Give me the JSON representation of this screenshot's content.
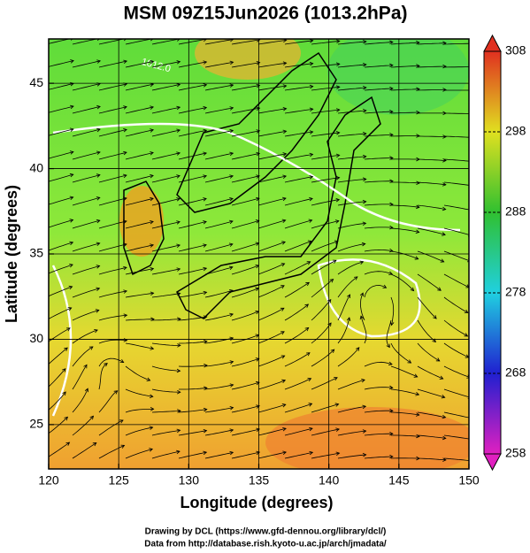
{
  "chart_data": {
    "type": "map",
    "title": "MSM 09Z15Jun2026 (1013.2hPa)",
    "x_label": "Longitude (degrees)",
    "y_label": "Latitude  (degrees)",
    "xlim": [
      120,
      150
    ],
    "xticks": [
      120,
      125,
      130,
      135,
      140,
      145,
      150
    ],
    "ylim": [
      22.4,
      47.6
    ],
    "yticks": [
      25,
      30,
      35,
      40,
      45
    ],
    "contour_label": "1012.0",
    "colorbar": {
      "lim": [
        258,
        308
      ],
      "ticks": [
        258,
        268,
        278,
        288,
        298,
        308
      ]
    },
    "footer": [
      "Drawing by DCL (https://www.gfd-dennou.org/library/dcl/)",
      "Data from http://database.rish.kyoto-u.ac.jp/arch/jmadata/"
    ]
  }
}
